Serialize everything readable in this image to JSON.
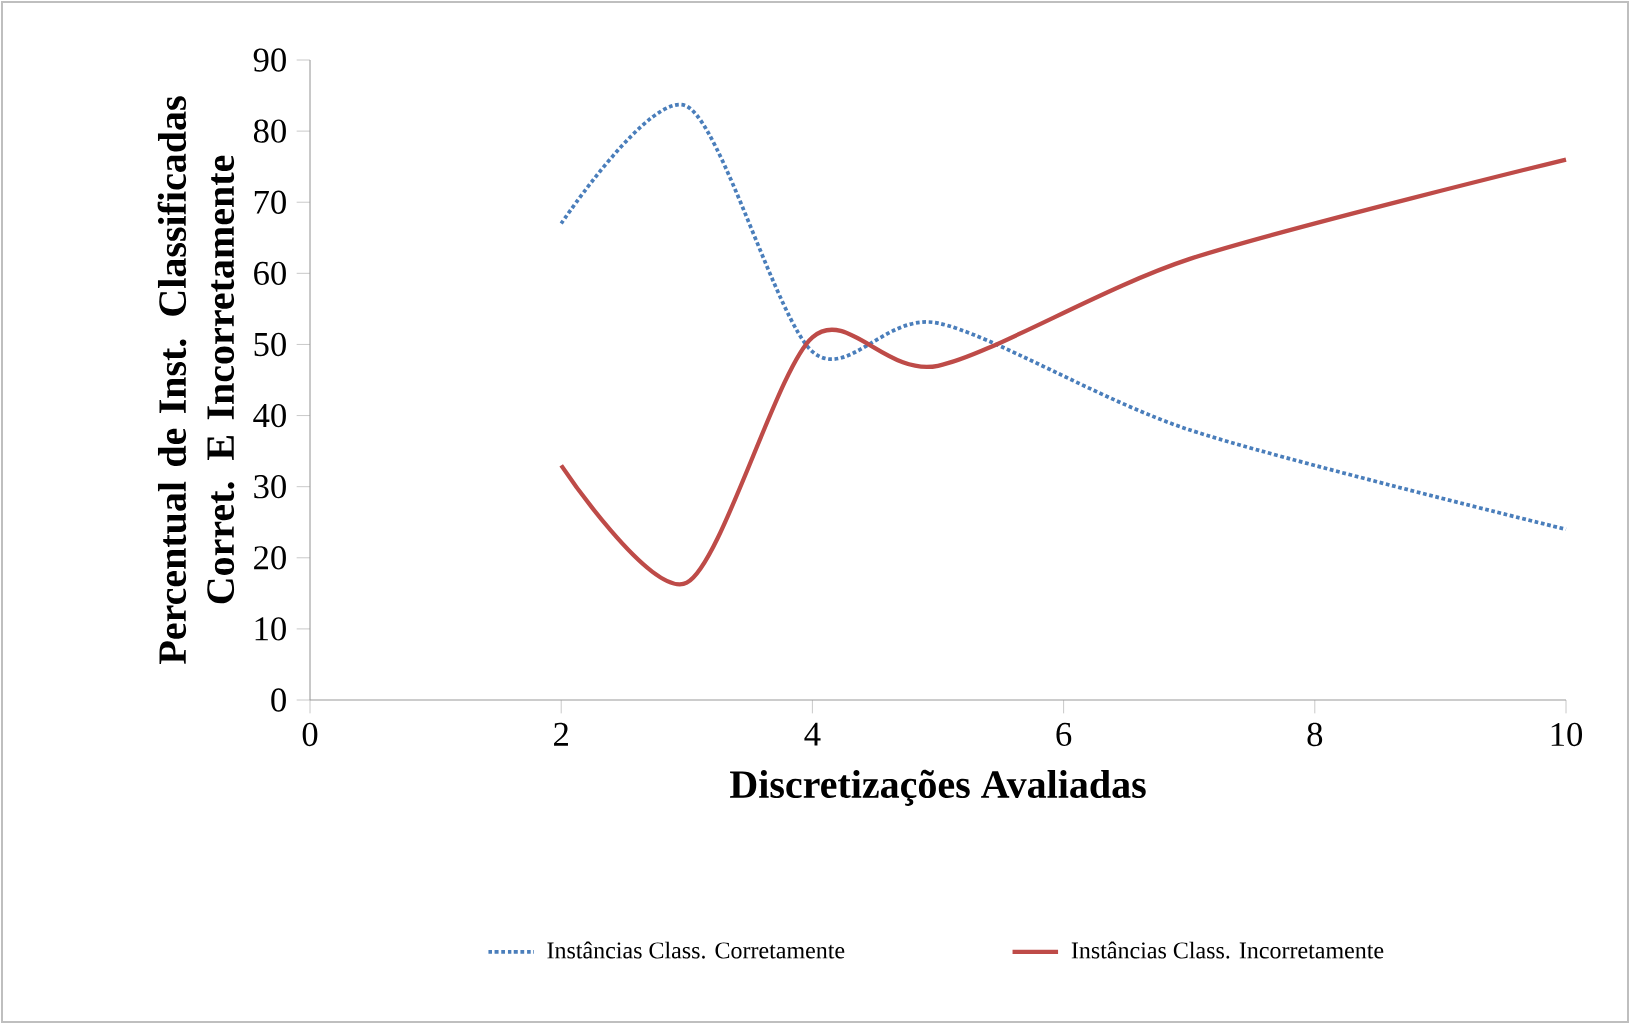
{
  "chart_data": {
    "type": "line",
    "xlabel": "Discretizações Avaliadas",
    "ylabel": "Percentual de Inst. Classificadas Corret. E Incorretamente",
    "series": [
      {
        "name": "Instâncias Class. Corretamente",
        "color": "#4a7ebb",
        "line_style": "dotted",
        "x": [
          2,
          3,
          4,
          5,
          7,
          10
        ],
        "values": [
          67,
          83.5,
          49,
          53,
          38,
          24
        ]
      },
      {
        "name": "Instâncias Class. Incorretamente",
        "color": "#be4b48",
        "line_style": "solid",
        "x": [
          2,
          3,
          4,
          5,
          7,
          10
        ],
        "values": [
          33,
          16.5,
          51,
          47,
          62,
          76
        ]
      }
    ],
    "xlim": [
      0,
      10
    ],
    "xticks": [
      0,
      2,
      4,
      6,
      8,
      10
    ],
    "ylim": [
      0,
      90
    ],
    "yticks": [
      0,
      10,
      20,
      30,
      40,
      50,
      60,
      70,
      80,
      90
    ],
    "grid": false,
    "legend": "bottom"
  }
}
